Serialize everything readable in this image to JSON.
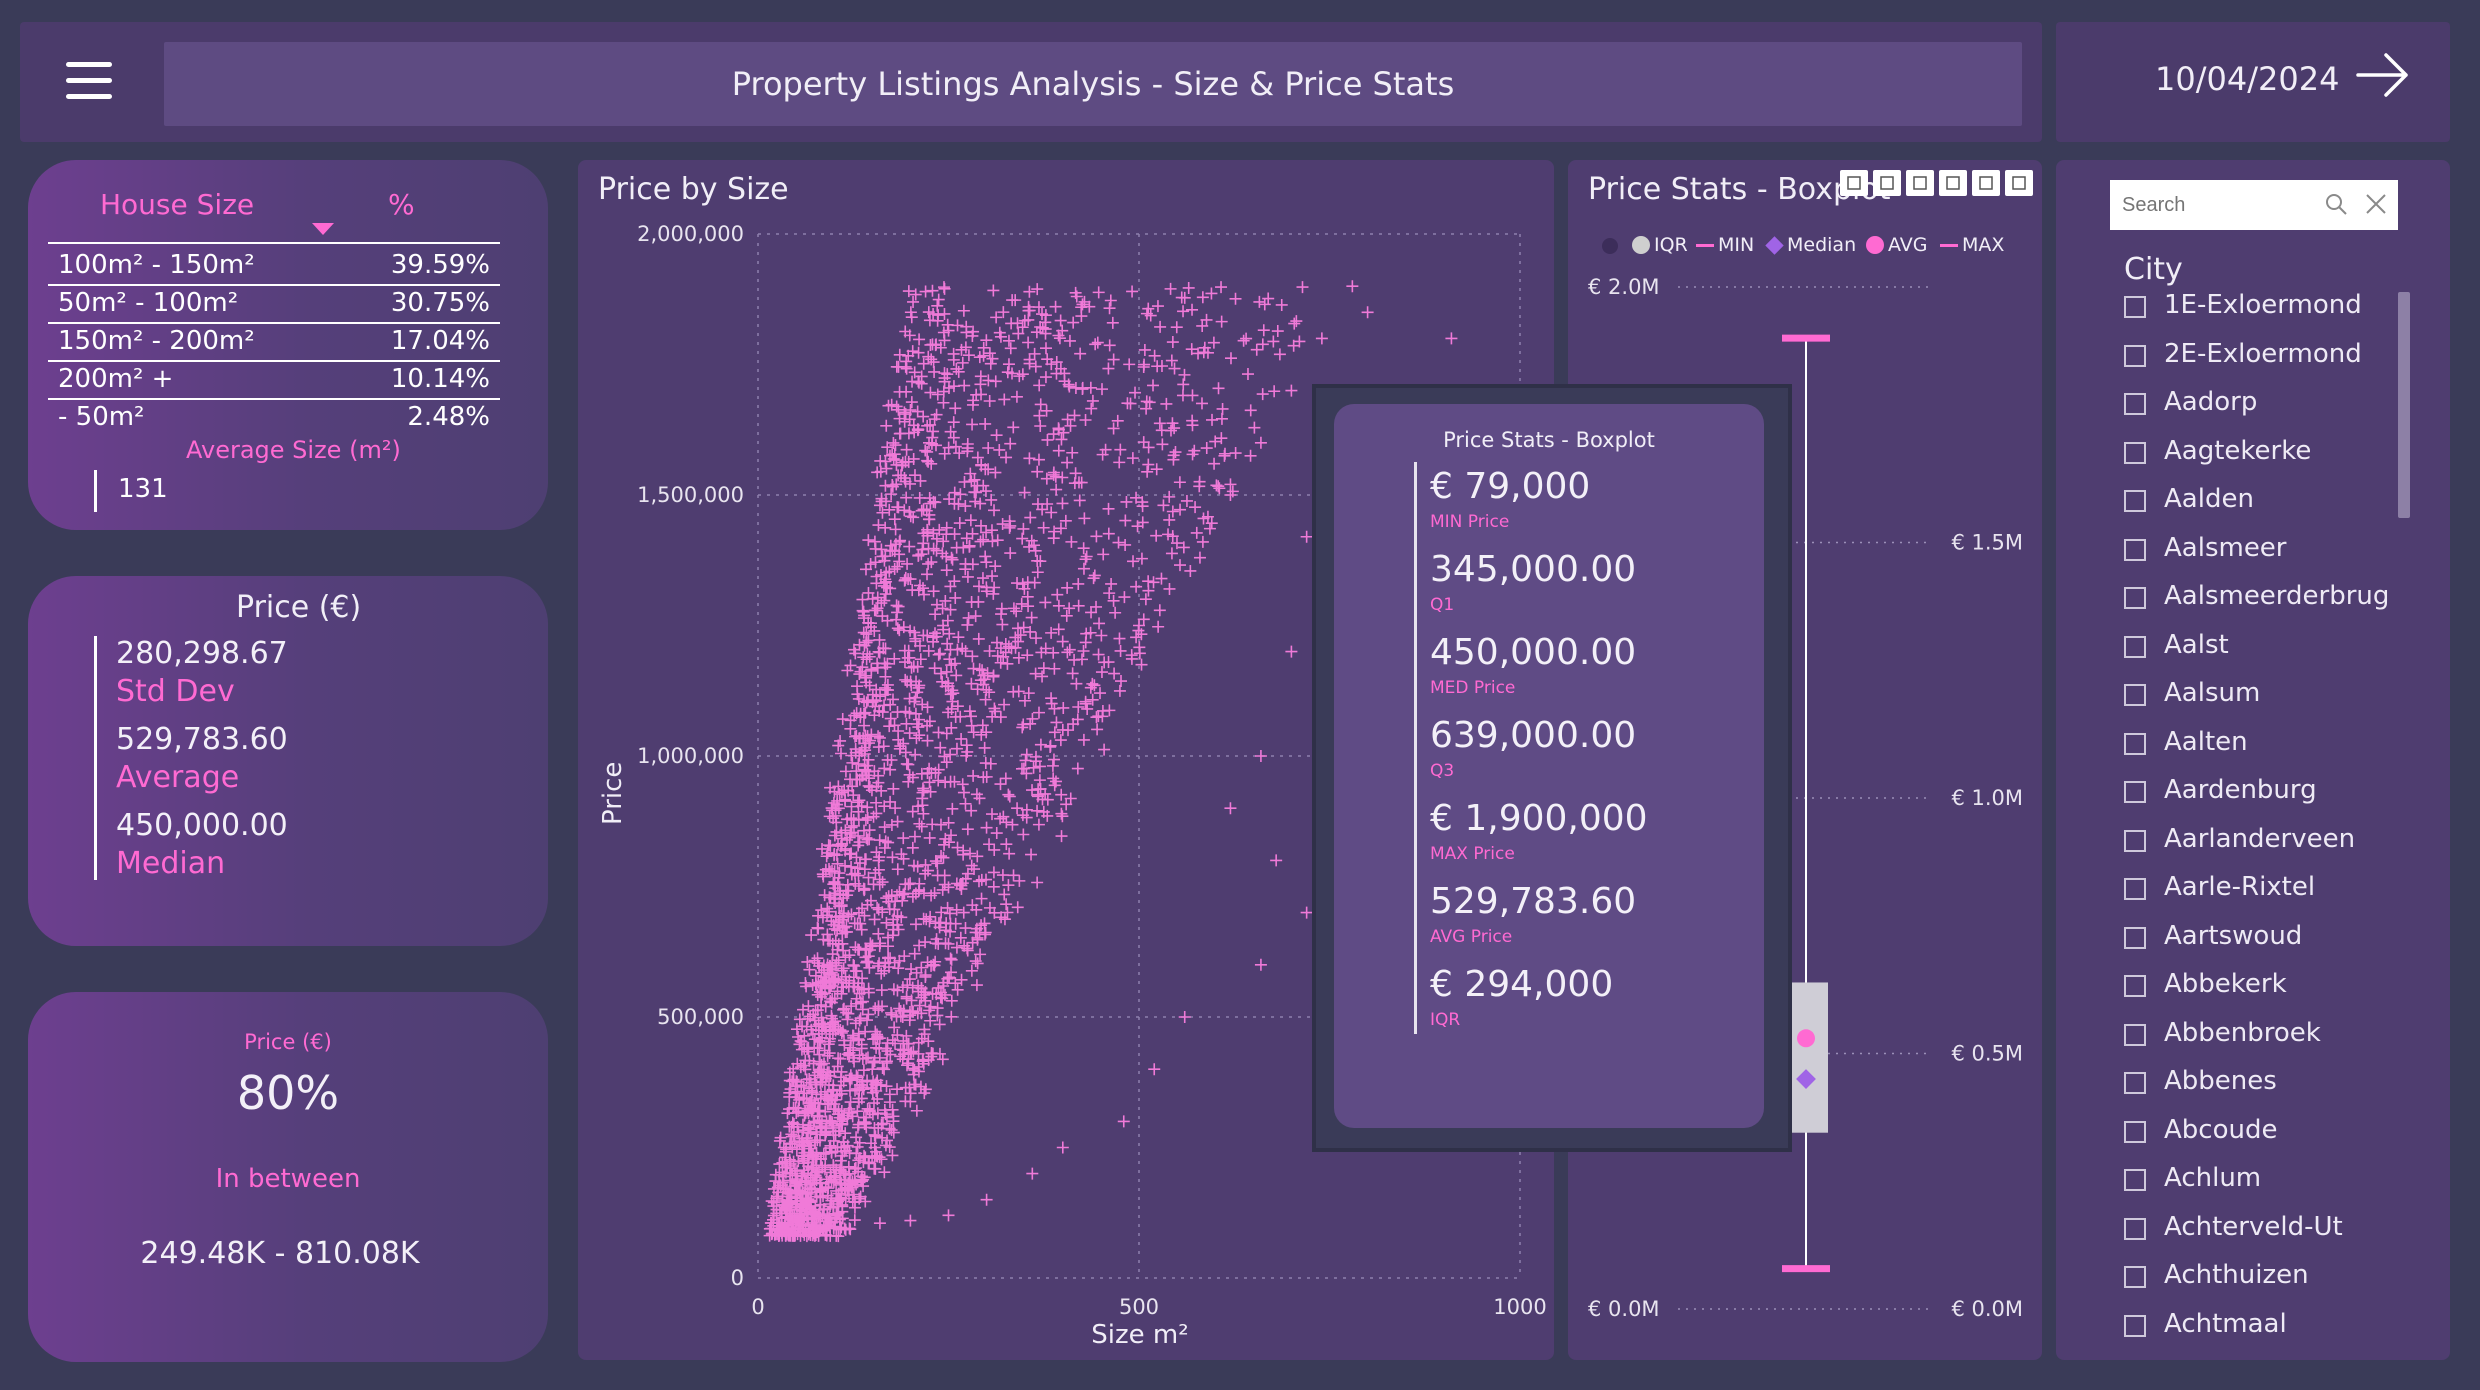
{
  "header": {
    "title": "Property Listings Analysis - Size & Price Stats",
    "date": "10/04/2024",
    "menu_icon": "hamburger-menu-icon",
    "next_icon": "arrow-right-icon"
  },
  "house_size": {
    "col_size": "House Size",
    "col_pct": "%",
    "rows": [
      {
        "label": "100m² - 150m²",
        "pct": "39.59%"
      },
      {
        "label": "50m² - 100m²",
        "pct": "30.75%"
      },
      {
        "label": "150m² - 200m²",
        "pct": "17.04%"
      },
      {
        "label": "200m² +",
        "pct": "10.14%"
      },
      {
        "label": "- 50m²",
        "pct": "2.48%"
      }
    ],
    "avg_label": "Average Size (m²)",
    "avg_value": "131"
  },
  "price_card": {
    "title": "Price (€)",
    "std_value": "280,298.67",
    "std_label": "Std Dev",
    "avg_value": "529,783.60",
    "avg_label": "Average",
    "median_value": "450,000.00",
    "median_label": "Median"
  },
  "pct_card": {
    "title": "Price (€)",
    "value": "80%",
    "label": "In between",
    "range": "249.48K - 810.08K"
  },
  "scatter": {
    "title": "Price by Size",
    "xlabel": "Size m²",
    "ylabel": "Price"
  },
  "chart_data": {
    "type": "scatter",
    "title": "Price by Size",
    "xlabel": "Size m²",
    "ylabel": "Price",
    "xlim": [
      0,
      1000
    ],
    "ylim": [
      0,
      2000000
    ],
    "x_ticks": [
      "0",
      "500",
      "1000"
    ],
    "y_ticks": [
      "0",
      "500,000",
      "1,000,000",
      "1,500,000",
      "2,000,000"
    ],
    "marker": "+",
    "color": "#f07ad8",
    "grid": true,
    "points": [
      [
        20,
        100000
      ],
      [
        35,
        140000
      ],
      [
        50,
        180000
      ],
      [
        60,
        220000
      ],
      [
        75,
        260000
      ],
      [
        90,
        300000
      ],
      [
        110,
        320000
      ],
      [
        130,
        380000
      ],
      [
        150,
        400000
      ],
      [
        170,
        450000
      ],
      [
        190,
        500000
      ],
      [
        210,
        560000
      ],
      [
        230,
        600000
      ],
      [
        250,
        640000
      ],
      [
        270,
        700000
      ],
      [
        290,
        760000
      ],
      [
        310,
        820000
      ],
      [
        340,
        900000
      ],
      [
        370,
        980000
      ],
      [
        400,
        1050000
      ],
      [
        430,
        1100000
      ],
      [
        460,
        1180000
      ],
      [
        500,
        1250000
      ],
      [
        540,
        1320000
      ],
      [
        580,
        1380000
      ],
      [
        620,
        1500000
      ],
      [
        660,
        1600000
      ],
      [
        700,
        1700000
      ],
      [
        740,
        1800000
      ],
      [
        780,
        1900000
      ],
      [
        910,
        1800000
      ],
      [
        800,
        1850000
      ],
      [
        760,
        1510000
      ],
      [
        720,
        1420000
      ],
      [
        700,
        1200000
      ],
      [
        660,
        1000000
      ],
      [
        620,
        900000
      ],
      [
        680,
        800000
      ],
      [
        720,
        700000
      ],
      [
        660,
        600000
      ],
      [
        560,
        500000
      ],
      [
        520,
        400000
      ],
      [
        480,
        300000
      ],
      [
        400,
        250000
      ],
      [
        360,
        200000
      ],
      [
        300,
        150000
      ],
      [
        250,
        120000
      ],
      [
        200,
        110000
      ],
      [
        160,
        105000
      ],
      [
        120,
        95000
      ],
      [
        80,
        90000
      ],
      [
        45,
        85000
      ]
    ]
  },
  "boxplot": {
    "title": "Price Stats - Boxplot",
    "legend": [
      {
        "name": "IQR",
        "color": "#cfcfcf",
        "marker": "dot"
      },
      {
        "name": "MIN",
        "color": "#ff6ad2",
        "marker": "line"
      },
      {
        "name": "Median",
        "color": "#a064e6",
        "marker": "diamond"
      },
      {
        "name": "AVG",
        "color": "#ff6ad2",
        "marker": "dot"
      },
      {
        "name": "MAX",
        "color": "#ff6ad2",
        "marker": "line"
      }
    ],
    "left_ticks": [
      "€ 2.0M",
      "€ 0.0M"
    ],
    "right_ticks": [
      "€ 1.5M",
      "€ 1.0M",
      "€ 0.5M",
      "€ 0.0M"
    ],
    "stats": {
      "min": 79000,
      "q1": 345000,
      "median": 450000,
      "q3": 639000,
      "max": 1900000,
      "avg": 529783.6
    },
    "axis_range": [
      0,
      2000000
    ],
    "toolbar_icons": [
      "pin-icon",
      "copy-icon",
      "bell-icon",
      "filter-icon",
      "focus-icon",
      "more-options-icon"
    ]
  },
  "tooltip": {
    "title": "Price Stats - Boxplot",
    "items": [
      {
        "value": "€ 79,000",
        "label": "MIN Price"
      },
      {
        "value": "345,000.00",
        "label": "Q1"
      },
      {
        "value": "450,000.00",
        "label": "MED Price"
      },
      {
        "value": "639,000.00",
        "label": "Q3"
      },
      {
        "value": "€ 1,900,000",
        "label": "MAX Price"
      },
      {
        "value": "529,783.60",
        "label": "AVG Price"
      },
      {
        "value": "€ 294,000",
        "label": "IQR"
      }
    ]
  },
  "city_slicer": {
    "search_placeholder": "Search",
    "heading": "City",
    "cities": [
      "1E-Exloermond",
      "2E-Exloermond",
      "Aadorp",
      "Aagtekerke",
      "Aalden",
      "Aalsmeer",
      "Aalsmeerderbrug",
      "Aalst",
      "Aalsum",
      "Aalten",
      "Aardenburg",
      "Aarlanderveen",
      "Aarle-Rixtel",
      "Aartswoud",
      "Abbekerk",
      "Abbenbroek",
      "Abbenes",
      "Abcoude",
      "Achlum",
      "Achterveld-Ut",
      "Achthuizen",
      "Achtmaal"
    ]
  }
}
